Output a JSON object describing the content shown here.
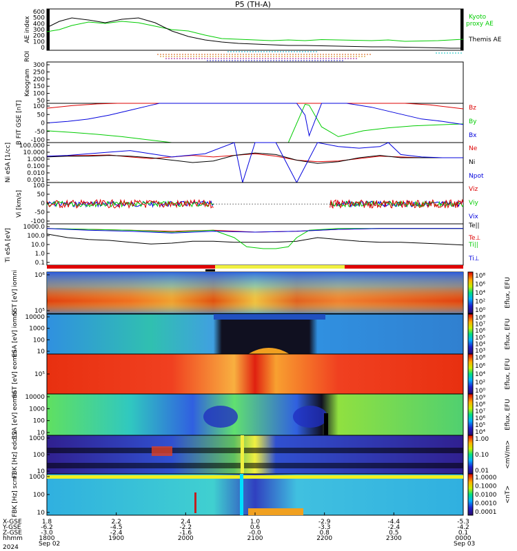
{
  "title": "P5 (TH-A)",
  "time_axis": {
    "ticks": [
      "1800",
      "1900",
      "2000",
      "2100",
      "2200",
      "2300",
      "0000"
    ],
    "date_labels": {
      "start": "Sep 02",
      "end": "Sep 03"
    },
    "year": "2024",
    "row_labels": [
      "X-GSE",
      "Y-GSE",
      "Z-GSE",
      "hhmm",
      "2024"
    ],
    "ephemeris": {
      "x_gse": [
        "1.8",
        "2.2",
        "2.4",
        "1.0",
        "-2.9",
        "-4.4",
        "-5.3"
      ],
      "y_gse": [
        "-6.2",
        "-4.5",
        "-2.2",
        "0.6",
        "-3.3",
        "-2.4",
        "-4.2"
      ],
      "z_gse": [
        "-3.0",
        "-2.4",
        "-1.6",
        "-0.0",
        "0.8",
        "0.5",
        "0.1"
      ]
    }
  },
  "chart_data": [
    {
      "type": "line",
      "panel": "ae",
      "ylabel": "AE index",
      "yticks": [
        "600",
        "500",
        "400",
        "300",
        "200",
        "100",
        "0"
      ],
      "ylim": [
        0,
        600
      ],
      "series": [
        {
          "name": "Kyoto proxy AE",
          "color": "#00cc00",
          "x": [
            0,
            0.03,
            0.06,
            0.1,
            0.14,
            0.18,
            0.22,
            0.26,
            0.3,
            0.34,
            0.38,
            0.42,
            0.46,
            0.5,
            0.54,
            0.58,
            0.62,
            0.66,
            0.7,
            0.74,
            0.78,
            0.82,
            0.86,
            0.9,
            0.94,
            0.97,
            1.0
          ],
          "y": [
            270,
            300,
            360,
            410,
            390,
            420,
            400,
            350,
            300,
            280,
            220,
            170,
            160,
            150,
            140,
            150,
            140,
            155,
            150,
            145,
            140,
            150,
            130,
            135,
            140,
            150,
            160
          ]
        },
        {
          "name": "Themis AE",
          "color": "#000000",
          "x": [
            0,
            0.03,
            0.06,
            0.1,
            0.14,
            0.18,
            0.22,
            0.26,
            0.3,
            0.34,
            0.38,
            0.42,
            0.46,
            0.5,
            0.54,
            0.58,
            0.62,
            0.66,
            0.7,
            0.74,
            0.78,
            0.82,
            0.86,
            0.9,
            0.94,
            0.97,
            1.0
          ],
          "y": [
            330,
            420,
            470,
            440,
            400,
            450,
            470,
            400,
            280,
            200,
            150,
            120,
            100,
            90,
            80,
            70,
            70,
            65,
            60,
            55,
            50,
            50,
            45,
            40,
            35,
            30,
            30
          ]
        }
      ]
    },
    {
      "type": "line",
      "panel": "bfield",
      "ylabel": "B FIT GSE [nT]",
      "yticks": [
        "100",
        "50",
        "0",
        "-50",
        "-100"
      ],
      "ylim": [
        -100,
        100
      ],
      "series": [
        {
          "name": "Bz",
          "color": "#dd0000",
          "x": [
            0,
            0.06,
            0.12,
            0.17,
            0.4,
            0.5,
            0.62,
            0.8,
            0.86,
            0.92,
            1.0
          ],
          "y": [
            75,
            88,
            97,
            100,
            100,
            100,
            100,
            100,
            100,
            92,
            72
          ]
        },
        {
          "name": "By",
          "color": "#00cc00",
          "x": [
            0,
            0.06,
            0.12,
            0.18,
            0.24,
            0.3,
            0.36,
            0.42,
            0.5,
            0.58,
            0.62,
            0.63,
            0.66,
            0.7,
            0.76,
            0.82,
            0.88,
            0.94,
            1.0
          ],
          "y": [
            -40,
            -48,
            -58,
            -70,
            -85,
            -100,
            -100,
            -100,
            -100,
            -100,
            95,
            90,
            -20,
            -70,
            -40,
            -25,
            -15,
            -10,
            -5
          ]
        },
        {
          "name": "Bx",
          "color": "#0000dd",
          "x": [
            0,
            0.05,
            0.1,
            0.15,
            0.2,
            0.25,
            0.27,
            0.4,
            0.5,
            0.6,
            0.62,
            0.63,
            0.66,
            0.72,
            0.78,
            0.84,
            0.9,
            0.95,
            1.0
          ],
          "y": [
            0,
            8,
            20,
            40,
            65,
            90,
            100,
            100,
            100,
            100,
            40,
            -65,
            100,
            100,
            80,
            50,
            20,
            8,
            -8
          ]
        }
      ]
    },
    {
      "type": "line",
      "panel": "density",
      "ylabel": "Ni eSA [1/cc]",
      "yticks": [
        "100.000",
        "10.000",
        "1.000",
        "0.100",
        "0.010",
        "0.001"
      ],
      "ylim_log": [
        -3,
        2
      ],
      "series": [
        {
          "name": "Ne",
          "color": "#dd0000",
          "x": [
            0,
            0.05,
            0.1,
            0.15,
            0.2,
            0.25,
            0.3,
            0.35,
            0.4,
            0.45,
            0.5,
            0.55,
            0.6,
            0.65,
            0.7,
            0.75,
            0.8,
            0.85,
            0.9,
            0.95,
            1.0
          ],
          "y": [
            0.3,
            0.35,
            0.4,
            0.45,
            0.2,
            0.0,
            0.2,
            0.4,
            0.2,
            0.4,
            0.6,
            0.3,
            -0.2,
            -0.4,
            -0.3,
            0.0,
            0.3,
            0.2,
            0.1,
            0.1,
            0.1
          ]
        },
        {
          "name": "Ni",
          "color": "#000000",
          "x": [
            0,
            0.05,
            0.1,
            0.15,
            0.2,
            0.25,
            0.3,
            0.35,
            0.4,
            0.45,
            0.5,
            0.55,
            0.6,
            0.65,
            0.7,
            0.75,
            0.8,
            0.85,
            0.9,
            0.95,
            1.0
          ],
          "y": [
            0.2,
            0.3,
            0.3,
            0.4,
            0.3,
            0.1,
            -0.2,
            -0.5,
            -0.3,
            0.4,
            0.7,
            0.5,
            -0.2,
            -0.6,
            -0.4,
            0.1,
            0.4,
            0.1,
            0.1,
            0.1,
            0.1
          ]
        },
        {
          "name": "Npot",
          "color": "#0000dd",
          "x": [
            0,
            0.05,
            0.1,
            0.15,
            0.2,
            0.25,
            0.3,
            0.38,
            0.45,
            0.47,
            0.5,
            0.55,
            0.6,
            0.65,
            0.7,
            0.75,
            0.8,
            0.82,
            0.85,
            0.9,
            0.95,
            1.0
          ],
          "y": [
            0.3,
            0.4,
            0.6,
            0.8,
            1.0,
            0.6,
            0.2,
            0.6,
            2.0,
            -3.0,
            2.0,
            2.0,
            -3.0,
            2.0,
            1.5,
            1.3,
            1.5,
            2.0,
            0.5,
            0.2,
            0.1,
            0.1
          ]
        }
      ]
    },
    {
      "type": "line",
      "panel": "velocity",
      "ylabel": "Vi [km/s]",
      "yticks": [
        "100",
        "50",
        "0",
        "-50",
        "-100"
      ],
      "ylim": [
        -150,
        150
      ],
      "series": [
        {
          "name": "Viz",
          "color": "#dd0000",
          "x": [
            0,
            0.4,
            0.67,
            1.0
          ],
          "y": [
            0,
            0,
            0,
            0
          ]
        },
        {
          "name": "Viy",
          "color": "#00cc00",
          "x": [
            0,
            0.4,
            0.67,
            1.0
          ],
          "y": [
            5,
            5,
            10,
            5
          ]
        },
        {
          "name": "Vix",
          "color": "#0000dd",
          "x": [
            0,
            0.4,
            0.67,
            1.0
          ],
          "y": [
            5,
            5,
            5,
            5
          ]
        }
      ]
    },
    {
      "type": "line",
      "panel": "temperature",
      "ylabel": "Ti eSA [eV]",
      "yticks": [
        "1000.0",
        "100.0",
        "10.0",
        "1.0",
        "0.1"
      ],
      "ylim_log": [
        -1,
        3.5
      ],
      "series": [
        {
          "name": "Te||",
          "color": "#000000",
          "x": [
            0,
            0.05,
            0.1,
            0.15,
            0.2,
            0.25,
            0.3,
            0.35,
            0.4,
            0.45,
            0.5,
            0.55,
            0.6,
            0.65,
            0.7,
            0.75,
            0.8,
            0.85,
            0.9,
            0.95,
            1.0
          ],
          "y": [
            2.4,
            2.0,
            1.8,
            1.7,
            1.5,
            1.3,
            1.4,
            1.6,
            1.6,
            1.5,
            1.5,
            1.5,
            1.6,
            2.0,
            1.8,
            1.6,
            1.5,
            1.5,
            1.4,
            1.3,
            1.2
          ]
        },
        {
          "name": "Te⊥",
          "color": "#dd0000",
          "x": [
            0,
            0.1,
            0.2,
            0.3,
            0.4,
            0.5,
            0.6,
            0.7,
            0.8,
            0.9,
            1.0
          ],
          "y": [
            3.0,
            2.9,
            2.8,
            2.7,
            2.8,
            2.6,
            2.7,
            2.9,
            3.0,
            3.0,
            3.0
          ]
        },
        {
          "name": "Ti||",
          "color": "#00cc00",
          "x": [
            0,
            0.1,
            0.2,
            0.3,
            0.4,
            0.45,
            0.48,
            0.52,
            0.55,
            0.58,
            0.6,
            0.63,
            0.7,
            0.8,
            0.9,
            1.0
          ],
          "y": [
            3.0,
            2.9,
            2.8,
            2.6,
            2.8,
            2.0,
            1.0,
            0.8,
            0.8,
            1.0,
            2.0,
            2.8,
            3.0,
            3.0,
            3.0,
            3.0
          ]
        },
        {
          "name": "Ti⊥",
          "color": "#0000dd",
          "x": [
            0,
            0.1,
            0.2,
            0.3,
            0.4,
            0.5,
            0.6,
            0.7,
            0.8,
            0.9,
            1.0
          ],
          "y": [
            3.0,
            2.8,
            2.7,
            2.5,
            2.7,
            2.6,
            2.7,
            2.9,
            3.0,
            3.0,
            3.0
          ]
        }
      ]
    },
    {
      "type": "heatmap",
      "panel": "sst-ion",
      "ylabel": "SST [eV] iomni",
      "yticks": [
        "10⁶",
        "10⁵"
      ],
      "colorbar": {
        "label": "Eflux, EFU",
        "ticks": [
          "10⁸",
          "10⁶",
          "10⁴",
          "10²",
          "10⁰"
        ]
      }
    },
    {
      "type": "heatmap",
      "panel": "esa-ion",
      "ylabel": "ESA [eV] iomni",
      "yticks": [
        "10000",
        "1000",
        "100",
        "10"
      ],
      "colorbar": {
        "label": "Eflux, EFU",
        "ticks": [
          "10⁸",
          "10⁷",
          "10⁶",
          "10⁵",
          "10⁴",
          "10³"
        ]
      }
    },
    {
      "type": "heatmap",
      "panel": "sst-electron",
      "ylabel": "SST [eV] eomni",
      "yticks": [
        "10⁵"
      ],
      "colorbar": {
        "label": "Eflux, EFU",
        "ticks": [
          "10⁸",
          "10⁶",
          "10⁴",
          "10²",
          "10⁰"
        ]
      }
    },
    {
      "type": "heatmap",
      "panel": "esa-electron",
      "ylabel": "ESA [eV] eomni",
      "yticks": [
        "10000",
        "1000",
        "100",
        "10"
      ],
      "colorbar": {
        "label": "Eflux, EFU",
        "ticks": [
          "10⁹",
          "10⁸",
          "10⁷",
          "10⁶",
          "10⁵",
          "10⁴"
        ]
      }
    },
    {
      "type": "heatmap",
      "panel": "fbk-e",
      "ylabel": "FBK [Hz] edc12",
      "yticks": [
        "1000",
        "100",
        "10"
      ],
      "colorbar": {
        "label": "<mV/m>",
        "ticks": [
          "1.00",
          "0.10",
          "0.01"
        ]
      }
    },
    {
      "type": "heatmap",
      "panel": "fbk-b",
      "ylabel": "FBK [Hz] scm1",
      "yticks": [
        "1000",
        "100",
        "10"
      ],
      "colorbar": {
        "label": "<nT>",
        "ticks": [
          "1.0000",
          "0.1000",
          "0.0100",
          "0.0010",
          "0.0001"
        ]
      }
    }
  ],
  "side_panels": {
    "roi_label": "ROI",
    "keogram_label": "Keogram",
    "keogram_yticks": [
      "300",
      "250",
      "200",
      "150",
      "100",
      "50"
    ]
  }
}
